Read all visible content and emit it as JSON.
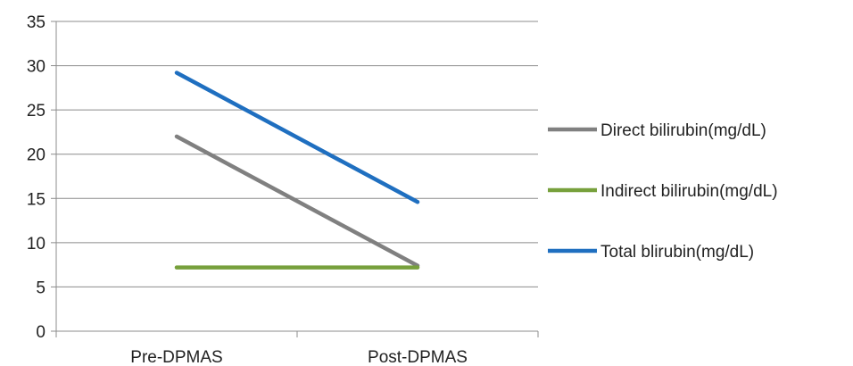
{
  "chart_data": {
    "type": "line",
    "title": "",
    "xlabel": "",
    "ylabel": "",
    "categories": [
      "Pre-DPMAS",
      "Post-DPMAS"
    ],
    "ylim": [
      0,
      35
    ],
    "yticks": [
      0,
      5,
      10,
      15,
      20,
      25,
      30,
      35
    ],
    "grid": "horizontal",
    "legend_position": "right",
    "series": [
      {
        "name": "Direct bilirubin(mg/dL)",
        "values": [
          22.0,
          7.4
        ],
        "color": "#808080"
      },
      {
        "name": "Indirect bilirubin(mg/dL)",
        "values": [
          7.2,
          7.2
        ],
        "color": "#77A03C"
      },
      {
        "name": "Total blirubin(mg/dL)",
        "values": [
          29.2,
          14.6
        ],
        "color": "#1F6FC0"
      }
    ]
  }
}
